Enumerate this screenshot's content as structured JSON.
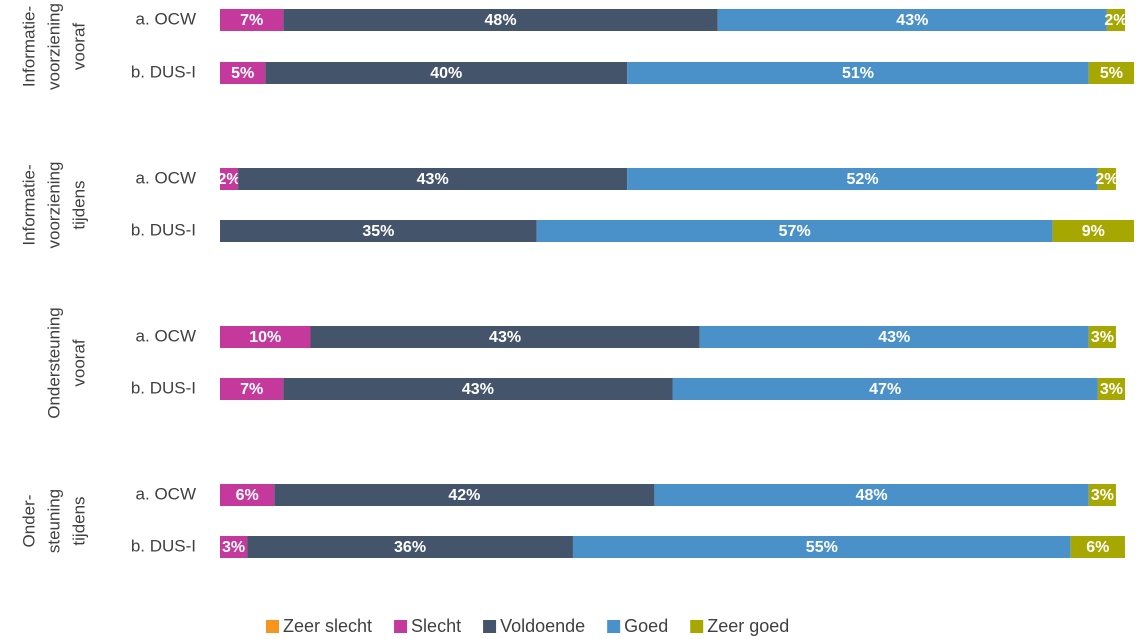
{
  "chart_data": {
    "type": "bar",
    "orientation": "horizontal",
    "stacked": true,
    "groups": [
      [
        "Informatie-",
        "voorziening",
        "vooraf"
      ],
      [
        "Informatie-",
        "voorziening",
        "tijdens"
      ],
      [
        "Ondersteuning",
        "vooraf"
      ],
      [
        "Onder-",
        "steuning",
        "tijdens"
      ]
    ],
    "categories": [
      "a. OCW",
      "b. DUS-I",
      "a. OCW",
      "b. DUS-I",
      "a. OCW",
      "b. DUS-I",
      "a. OCW",
      "b. DUS-I"
    ],
    "xlim": [
      0,
      100
    ],
    "series": [
      {
        "name": "Zeer slecht",
        "color": "#f7941d",
        "values": [
          0,
          0,
          0,
          0,
          0,
          0,
          0,
          0
        ],
        "value_labels": [
          null,
          null,
          null,
          null,
          null,
          null,
          null,
          null
        ]
      },
      {
        "name": "Slecht",
        "color": "#c4399b",
        "values": [
          7,
          5,
          2,
          0,
          10,
          7,
          6,
          3
        ],
        "value_labels": [
          "7%",
          "5%",
          "2%",
          null,
          "10%",
          "7%",
          "6%",
          "3%"
        ]
      },
      {
        "name": "Voldoende",
        "color": "#44546a",
        "values": [
          48,
          40,
          43,
          35,
          43,
          43,
          42,
          36
        ],
        "value_labels": [
          "48%",
          "40%",
          "43%",
          "35%",
          "43%",
          "43%",
          "42%",
          "36%"
        ]
      },
      {
        "name": "Goed",
        "color": "#4b91c9",
        "values": [
          43,
          51,
          52,
          57,
          43,
          47,
          48,
          55
        ],
        "value_labels": [
          "43%",
          "51%",
          "52%",
          "57%",
          "43%",
          "47%",
          "48%",
          "55%"
        ]
      },
      {
        "name": "Zeer goed",
        "color": "#a6a700",
        "values": [
          2,
          5,
          2,
          9,
          3,
          3,
          3,
          6
        ],
        "value_labels": [
          "2%",
          "5%",
          "2%",
          "9%",
          "3%",
          "3%",
          "3%",
          "6%"
        ]
      }
    ],
    "legend": "bottom"
  }
}
